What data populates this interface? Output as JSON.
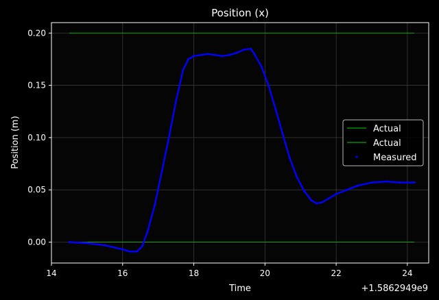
{
  "chart_data": {
    "type": "line",
    "title": "Position (x)",
    "xlabel": "Time",
    "ylabel": "Position (m)",
    "x_offset_label": "+1.5862949e9",
    "xlim": [
      14,
      24.6
    ],
    "ylim": [
      -0.02,
      0.21
    ],
    "xticks": [
      14,
      16,
      18,
      20,
      22,
      24
    ],
    "yticks": [
      0.0,
      0.05,
      0.1,
      0.15,
      0.2
    ],
    "ytick_labels": [
      "0.00",
      "0.05",
      "0.10",
      "0.15",
      "0.20"
    ],
    "grid": true,
    "legend_position": "center-right",
    "series": [
      {
        "name": "Actual",
        "kind": "line",
        "color": "#00aa00",
        "x": [
          14.5,
          24.2
        ],
        "y": [
          0.2,
          0.2
        ]
      },
      {
        "name": "Actual",
        "kind": "line",
        "color": "#00aa00",
        "x": [
          14.5,
          24.2
        ],
        "y": [
          0.0,
          0.0
        ]
      },
      {
        "name": "Measured",
        "kind": "points",
        "color": "#0000ff",
        "x": [
          14.5,
          15.0,
          15.5,
          16.0,
          16.2,
          16.4,
          16.55,
          16.7,
          16.9,
          17.1,
          17.3,
          17.5,
          17.7,
          17.85,
          18.0,
          18.2,
          18.4,
          18.6,
          18.8,
          19.0,
          19.2,
          19.4,
          19.6,
          19.7,
          19.9,
          20.1,
          20.3,
          20.5,
          20.7,
          20.9,
          21.1,
          21.3,
          21.45,
          21.6,
          21.8,
          22.0,
          22.3,
          22.6,
          23.0,
          23.4,
          23.8,
          24.2
        ],
        "y": [
          0.0,
          -0.001,
          -0.003,
          -0.007,
          -0.009,
          -0.009,
          -0.004,
          0.01,
          0.035,
          0.067,
          0.1,
          0.135,
          0.165,
          0.175,
          0.178,
          0.179,
          0.18,
          0.179,
          0.178,
          0.179,
          0.181,
          0.184,
          0.185,
          0.18,
          0.168,
          0.15,
          0.127,
          0.103,
          0.08,
          0.062,
          0.049,
          0.04,
          0.037,
          0.038,
          0.042,
          0.046,
          0.05,
          0.054,
          0.057,
          0.058,
          0.057,
          0.057
        ]
      }
    ]
  }
}
